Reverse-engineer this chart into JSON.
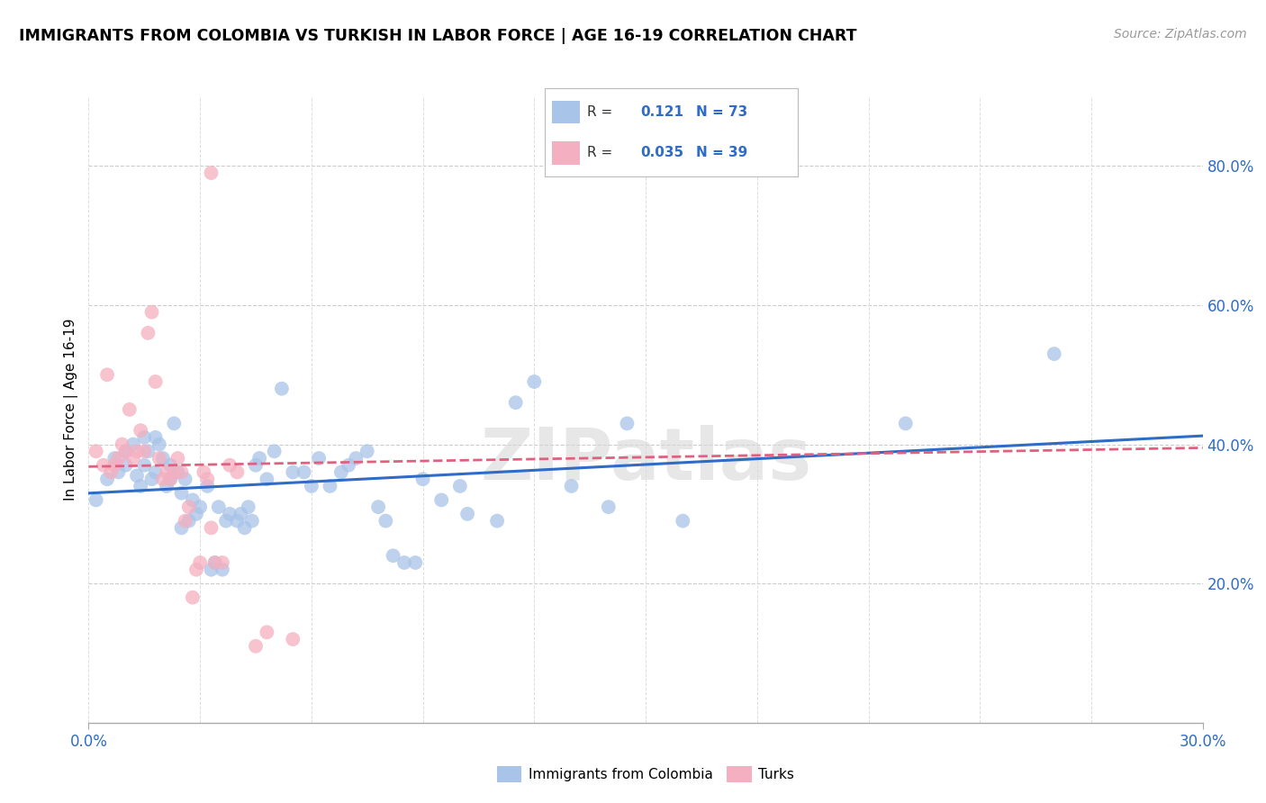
{
  "title": "IMMIGRANTS FROM COLOMBIA VS TURKISH IN LABOR FORCE | AGE 16-19 CORRELATION CHART",
  "source": "Source: ZipAtlas.com",
  "ylabel": "In Labor Force | Age 16-19",
  "xlim": [
    0.0,
    0.3
  ],
  "ylim": [
    0.0,
    0.9
  ],
  "xtick_left_label": "0.0%",
  "xtick_right_label": "30.0%",
  "yticks_right": [
    0.2,
    0.4,
    0.6,
    0.8
  ],
  "colombia_color": "#a8c4e8",
  "turk_color": "#f4afc0",
  "colombia_line_color": "#2e6cc7",
  "turk_line_color": "#e06080",
  "r_colombia": 0.121,
  "n_colombia": 73,
  "r_turk": 0.035,
  "n_turk": 39,
  "watermark": "ZIPatlas",
  "colombia_points": [
    [
      0.002,
      0.32
    ],
    [
      0.005,
      0.35
    ],
    [
      0.007,
      0.38
    ],
    [
      0.008,
      0.36
    ],
    [
      0.01,
      0.39
    ],
    [
      0.01,
      0.37
    ],
    [
      0.012,
      0.4
    ],
    [
      0.013,
      0.355
    ],
    [
      0.014,
      0.34
    ],
    [
      0.015,
      0.37
    ],
    [
      0.015,
      0.41
    ],
    [
      0.016,
      0.39
    ],
    [
      0.017,
      0.35
    ],
    [
      0.018,
      0.36
    ],
    [
      0.018,
      0.41
    ],
    [
      0.019,
      0.4
    ],
    [
      0.02,
      0.38
    ],
    [
      0.021,
      0.34
    ],
    [
      0.022,
      0.35
    ],
    [
      0.022,
      0.37
    ],
    [
      0.023,
      0.43
    ],
    [
      0.024,
      0.36
    ],
    [
      0.025,
      0.28
    ],
    [
      0.025,
      0.33
    ],
    [
      0.026,
      0.35
    ],
    [
      0.027,
      0.29
    ],
    [
      0.028,
      0.32
    ],
    [
      0.029,
      0.3
    ],
    [
      0.03,
      0.31
    ],
    [
      0.032,
      0.34
    ],
    [
      0.033,
      0.22
    ],
    [
      0.034,
      0.23
    ],
    [
      0.035,
      0.31
    ],
    [
      0.036,
      0.22
    ],
    [
      0.037,
      0.29
    ],
    [
      0.038,
      0.3
    ],
    [
      0.04,
      0.29
    ],
    [
      0.041,
      0.3
    ],
    [
      0.042,
      0.28
    ],
    [
      0.043,
      0.31
    ],
    [
      0.044,
      0.29
    ],
    [
      0.045,
      0.37
    ],
    [
      0.046,
      0.38
    ],
    [
      0.048,
      0.35
    ],
    [
      0.05,
      0.39
    ],
    [
      0.052,
      0.48
    ],
    [
      0.055,
      0.36
    ],
    [
      0.058,
      0.36
    ],
    [
      0.06,
      0.34
    ],
    [
      0.062,
      0.38
    ],
    [
      0.065,
      0.34
    ],
    [
      0.068,
      0.36
    ],
    [
      0.07,
      0.37
    ],
    [
      0.072,
      0.38
    ],
    [
      0.075,
      0.39
    ],
    [
      0.078,
      0.31
    ],
    [
      0.08,
      0.29
    ],
    [
      0.082,
      0.24
    ],
    [
      0.085,
      0.23
    ],
    [
      0.088,
      0.23
    ],
    [
      0.09,
      0.35
    ],
    [
      0.095,
      0.32
    ],
    [
      0.1,
      0.34
    ],
    [
      0.102,
      0.3
    ],
    [
      0.11,
      0.29
    ],
    [
      0.115,
      0.46
    ],
    [
      0.12,
      0.49
    ],
    [
      0.13,
      0.34
    ],
    [
      0.14,
      0.31
    ],
    [
      0.145,
      0.43
    ],
    [
      0.16,
      0.29
    ],
    [
      0.22,
      0.43
    ],
    [
      0.26,
      0.53
    ]
  ],
  "turk_points": [
    [
      0.002,
      0.39
    ],
    [
      0.004,
      0.37
    ],
    [
      0.005,
      0.5
    ],
    [
      0.006,
      0.36
    ],
    [
      0.007,
      0.37
    ],
    [
      0.008,
      0.38
    ],
    [
      0.009,
      0.4
    ],
    [
      0.01,
      0.39
    ],
    [
      0.011,
      0.45
    ],
    [
      0.012,
      0.38
    ],
    [
      0.013,
      0.39
    ],
    [
      0.014,
      0.42
    ],
    [
      0.015,
      0.39
    ],
    [
      0.016,
      0.56
    ],
    [
      0.017,
      0.59
    ],
    [
      0.018,
      0.49
    ],
    [
      0.019,
      0.38
    ],
    [
      0.02,
      0.35
    ],
    [
      0.021,
      0.36
    ],
    [
      0.022,
      0.35
    ],
    [
      0.023,
      0.36
    ],
    [
      0.024,
      0.38
    ],
    [
      0.025,
      0.36
    ],
    [
      0.026,
      0.29
    ],
    [
      0.027,
      0.31
    ],
    [
      0.028,
      0.18
    ],
    [
      0.029,
      0.22
    ],
    [
      0.03,
      0.23
    ],
    [
      0.031,
      0.36
    ],
    [
      0.032,
      0.35
    ],
    [
      0.033,
      0.28
    ],
    [
      0.034,
      0.23
    ],
    [
      0.036,
      0.23
    ],
    [
      0.038,
      0.37
    ],
    [
      0.04,
      0.36
    ],
    [
      0.045,
      0.11
    ],
    [
      0.048,
      0.13
    ],
    [
      0.055,
      0.12
    ],
    [
      0.033,
      0.79
    ]
  ],
  "colombia_trendline": [
    0.0,
    0.3
  ],
  "turk_trendline_y": [
    0.368,
    0.395
  ]
}
